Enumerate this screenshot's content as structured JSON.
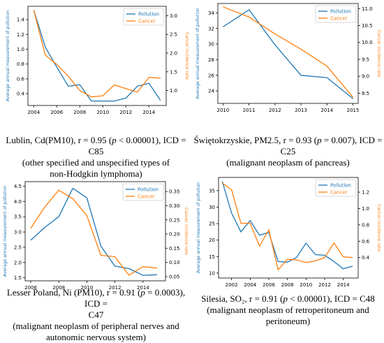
{
  "colors": {
    "pollution": "#1f77b4",
    "cancer": "#ff7f0e",
    "axis": "#000000"
  },
  "charts": [
    {
      "id": "p1",
      "caption": {
        "line1_pre": "Lublin, Cd(PM10), r = 0.95 (",
        "line1_p": "p",
        "line1_post": " < 0.00001), ICD = C85",
        "line2": "(other specified and unspecified types of",
        "line3": "non-Hodgkin lymphoma)"
      }
    },
    {
      "id": "p2",
      "caption": {
        "line1_pre": "Świętokrzyskie, PM2.5, r = 0.93 (",
        "line1_p": "p",
        "line1_post": " = 0.007), ICD = C25",
        "line2": "(malignant neoplasm of pancreas)"
      }
    },
    {
      "id": "p3",
      "caption": {
        "line1_pre": "Lesser Poland, Ni (PM10), r = 0.91 (",
        "line1_p": "p",
        "line1_post": " = 0.0003), ICD =",
        "line2": "C47",
        "line3": "(malignant neoplasm of peripheral nerves and",
        "line4": "autonomic nervous system)"
      }
    },
    {
      "id": "p4",
      "caption": {
        "line1_pre": "Silesia, SO₂, r = 0.91 (",
        "line1_p": "p",
        "line1_post": " < 0.00001), ICD = C48",
        "line2": "(malignant neoplasm of retroperitoneum and",
        "line3": "peritoneum)"
      }
    }
  ],
  "chart_data": [
    {
      "type": "line",
      "ylabel": "Average annual measurement of pollution",
      "y2label": "Cancer incidence rate",
      "legend": "top-right",
      "xlim": [
        2003.5,
        2015.5
      ],
      "xticks": [
        2004,
        2006,
        2008,
        2010,
        2012,
        2014
      ],
      "ylim": [
        0.24,
        1.58
      ],
      "yticks": [
        0.4,
        0.6,
        0.8,
        1.0,
        1.2,
        1.4
      ],
      "y2lim": [
        0.6,
        3.25
      ],
      "y2ticks": [
        1.0,
        1.5,
        2.0,
        2.5,
        3.0
      ],
      "series": [
        {
          "name": "Pollution",
          "axis": "left",
          "x": [
            2004,
            2005,
            2006,
            2007,
            2008,
            2009,
            2010,
            2011,
            2012,
            2013,
            2014,
            2015
          ],
          "values": [
            1.53,
            1.03,
            0.76,
            0.5,
            0.52,
            0.3,
            0.3,
            0.3,
            0.34,
            0.5,
            0.54,
            0.31
          ]
        },
        {
          "name": "Cancer",
          "axis": "right",
          "x": [
            2004,
            2005,
            2006,
            2007,
            2008,
            2009,
            2010,
            2011,
            2012,
            2013,
            2014,
            2015
          ],
          "values": [
            3.15,
            1.95,
            1.7,
            1.38,
            1.0,
            0.83,
            0.86,
            1.15,
            1.05,
            0.96,
            1.35,
            1.33
          ]
        }
      ]
    },
    {
      "type": "line",
      "ylabel": "Average annual measurement of pollution",
      "y2label": "Cancer incidence rate",
      "legend": "top-right",
      "xlim": [
        2009.8,
        2015.2
      ],
      "xticks": [
        2010,
        2011,
        2012,
        2013,
        2014,
        2015
      ],
      "ylim": [
        22.4,
        35.2
      ],
      "yticks": [
        24,
        26,
        28,
        30,
        32,
        34
      ],
      "y2lim": [
        8.2,
        11.15
      ],
      "y2ticks": [
        8.5,
        9.0,
        9.5,
        10.0,
        10.5,
        11.0
      ],
      "series": [
        {
          "name": "Pollution",
          "axis": "left",
          "x": [
            2010,
            2011,
            2012,
            2013,
            2014,
            2015
          ],
          "values": [
            32.2,
            34.4,
            29.9,
            26.0,
            25.7,
            23.0
          ]
        },
        {
          "name": "Cancer",
          "axis": "right",
          "x": [
            2010,
            2011,
            2012,
            2013,
            2014,
            2015
          ],
          "values": [
            11.05,
            10.75,
            10.25,
            9.8,
            9.3,
            8.38
          ]
        }
      ]
    },
    {
      "type": "line",
      "ylabel": "Average annual measurement of pollution",
      "y2label": "Cancer incidence rate",
      "legend": "top-right",
      "xlim": [
        2005.6,
        2015.6
      ],
      "xticks": [
        2006,
        2008,
        2010,
        2012,
        2014
      ],
      "ylim": [
        1.4,
        4.65
      ],
      "yticks": [
        1.5,
        2.0,
        2.5,
        3.0,
        3.5,
        4.0,
        4.5
      ],
      "y2lim": [
        0.035,
        0.385
      ],
      "y2ticks": [
        0.05,
        0.1,
        0.15,
        0.2,
        0.25,
        0.3,
        0.35
      ],
      "series": [
        {
          "name": "Pollution",
          "axis": "left",
          "x": [
            2006,
            2007,
            2008,
            2009,
            2010,
            2011,
            2012,
            2013,
            2014,
            2015
          ],
          "values": [
            2.73,
            3.15,
            3.5,
            4.43,
            4.12,
            2.54,
            1.88,
            1.8,
            1.58,
            1.6
          ]
        },
        {
          "name": "Cancer",
          "axis": "right",
          "x": [
            2006,
            2007,
            2008,
            2009,
            2010,
            2011,
            2012,
            2013,
            2014,
            2015
          ],
          "values": [
            0.22,
            0.295,
            0.355,
            0.325,
            0.265,
            0.125,
            0.12,
            0.055,
            0.085,
            0.08
          ]
        }
      ]
    },
    {
      "type": "line",
      "ylabel": "Average annual measurement of pollution",
      "y2label": "Cancer incidence rate",
      "legend": "top-right",
      "xlim": [
        2000.6,
        2015.6
      ],
      "xticks": [
        2002,
        2004,
        2006,
        2008,
        2010,
        2012,
        2014
      ],
      "ylim": [
        8.5,
        39.0
      ],
      "yticks": [
        10,
        15,
        20,
        25,
        30,
        35
      ],
      "y2lim": [
        0.15,
        1.38
      ],
      "y2ticks": [
        0.4,
        0.6,
        0.8,
        1.0,
        1.2
      ],
      "series": [
        {
          "name": "Pollution",
          "axis": "left",
          "x": [
            2001,
            2002,
            2003,
            2004,
            2005,
            2006,
            2007,
            2008,
            2009,
            2010,
            2011,
            2012,
            2013,
            2014,
            2015
          ],
          "values": [
            37.8,
            28.2,
            22.5,
            25.9,
            21.5,
            22.3,
            13.5,
            13.3,
            14.8,
            19.1,
            15.6,
            15.4,
            13.5,
            11.3,
            12.1
          ]
        },
        {
          "name": "Cancer",
          "axis": "right",
          "x": [
            2001,
            2002,
            2003,
            2004,
            2005,
            2006,
            2007,
            2008,
            2009,
            2010,
            2011,
            2012,
            2013,
            2014,
            2015
          ],
          "values": [
            1.31,
            1.23,
            0.82,
            0.82,
            0.54,
            0.74,
            0.25,
            0.38,
            0.37,
            0.34,
            0.36,
            0.4,
            0.58,
            0.41,
            0.4
          ]
        }
      ]
    }
  ]
}
